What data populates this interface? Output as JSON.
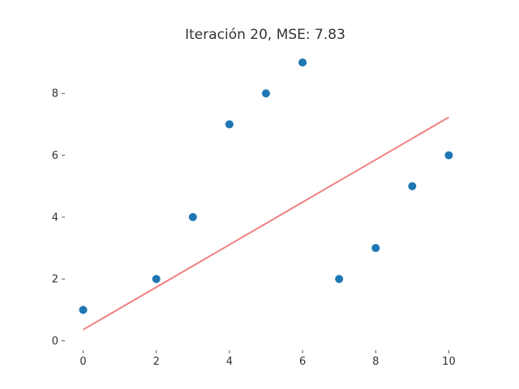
{
  "chart_data": {
    "type": "scatter",
    "title": "Iteración 20, MSE: 7.83",
    "xlabel": "",
    "ylabel": "",
    "xlim": [
      -0.5,
      10.5
    ],
    "ylim": [
      -0.3,
      9.5
    ],
    "xticks": [
      0,
      2,
      4,
      6,
      8,
      10
    ],
    "yticks": [
      0,
      2,
      4,
      6,
      8
    ],
    "grid": false,
    "series": [
      {
        "type": "scatter",
        "color": "#1f77b4",
        "points": [
          {
            "x": 0,
            "y": 1
          },
          {
            "x": 2,
            "y": 2
          },
          {
            "x": 3,
            "y": 4
          },
          {
            "x": 4,
            "y": 7
          },
          {
            "x": 5,
            "y": 8
          },
          {
            "x": 6,
            "y": 9
          },
          {
            "x": 7,
            "y": 2
          },
          {
            "x": 8,
            "y": 3
          },
          {
            "x": 9,
            "y": 5
          },
          {
            "x": 10,
            "y": 6
          }
        ]
      },
      {
        "type": "line",
        "color": "#f08080",
        "points": [
          {
            "x": 0,
            "y": 0.36
          },
          {
            "x": 10,
            "y": 7.23
          }
        ]
      }
    ]
  }
}
